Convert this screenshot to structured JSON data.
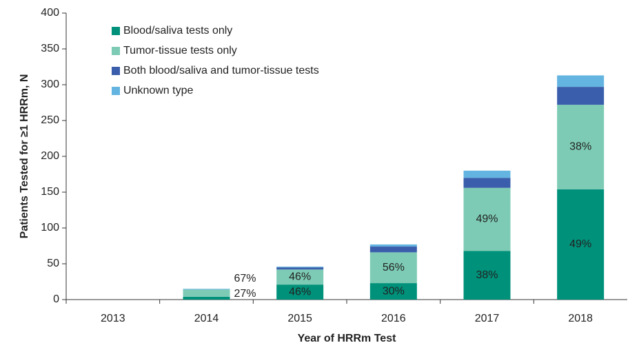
{
  "chart_data": {
    "type": "stacked-bar",
    "x_label": "Year of HRRm Test",
    "y_label": "Patients Tested for ≥1 HRRm, N",
    "categories": [
      "2013",
      "2014",
      "2015",
      "2016",
      "2017",
      "2018"
    ],
    "series": [
      {
        "name": "Blood/saliva tests only",
        "color": "#00917a",
        "values": [
          0,
          4,
          21,
          23,
          68,
          154
        ],
        "share_labels": [
          null,
          "27%",
          "46%",
          "30%",
          "38%",
          "49%"
        ]
      },
      {
        "name": "Tumor-tissue tests only",
        "color": "#7dcbb4",
        "values": [
          0,
          10,
          21,
          43,
          88,
          118
        ],
        "share_labels": [
          null,
          "67%",
          "46%",
          "56%",
          "49%",
          "38%"
        ]
      },
      {
        "name": "Both blood/saliva and tumor-tissue tests",
        "color": "#3a5eab",
        "values": [
          0,
          0,
          3,
          8,
          14,
          25
        ]
      },
      {
        "name": "Unknown type",
        "color": "#63b4e0",
        "values": [
          0,
          1,
          1,
          3,
          10,
          16
        ]
      }
    ],
    "ylim": [
      0,
      400
    ],
    "yticks": [
      0,
      50,
      100,
      150,
      200,
      250,
      300,
      350,
      400
    ]
  }
}
